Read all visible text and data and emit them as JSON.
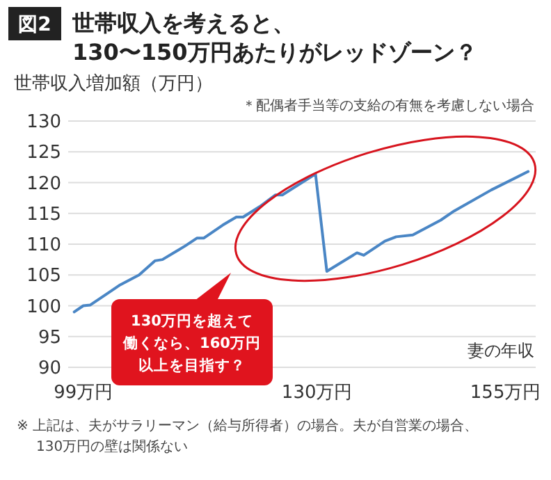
{
  "chart_data": {
    "type": "line",
    "title": "世帯収入を考えると、\n130〜150万円あたりがレッドゾーン？",
    "ylabel": "世帯収入増加額（万円）",
    "xlabel": "妻の年収",
    "annotations": [
      "図2",
      "＊配偶者手当等の支給の有無を考慮しない場合",
      "130万円を超えて",
      "働くなら、160万円",
      "以上を目指す？",
      "※ 上記は、夫がサラリーマン（給与所得者）の場合。夫が自営業の場合、",
      "130万円の壁は関係ない"
    ],
    "x": [
      97.8,
      99,
      99.9,
      102.1,
      103.9,
      106.4,
      108.5,
      109.5,
      112.5,
      114.1,
      115,
      117.5,
      119.3,
      120.2,
      122.4,
      124.5,
      125.4,
      129.8,
      131.3,
      135.3,
      136.2,
      139,
      140.5,
      142.7,
      146.4,
      148.2,
      153.1,
      158
    ],
    "series": [
      {
        "color": "#4a86c5",
        "values": [
          99,
          100,
          100.1,
          101.9,
          103.4,
          105,
          107.3,
          107.5,
          109.7,
          111,
          111,
          113.1,
          114.4,
          114.4,
          116.1,
          118,
          118,
          121.4,
          105.6,
          108.6,
          108.2,
          110.5,
          111.2,
          111.5,
          113.9,
          115.4,
          118.8,
          121.8
        ]
      }
    ],
    "xlim": [
      97,
      159
    ],
    "xticks": [
      {
        "value": 99,
        "label": "99万円"
      },
      {
        "value": 130,
        "label": "130万円"
      },
      {
        "value": 155,
        "label": "155万円"
      }
    ],
    "ylim": [
      90,
      130
    ],
    "yticks": [
      90,
      95,
      100,
      105,
      110,
      115,
      120,
      125,
      130
    ],
    "grid": "y"
  }
}
